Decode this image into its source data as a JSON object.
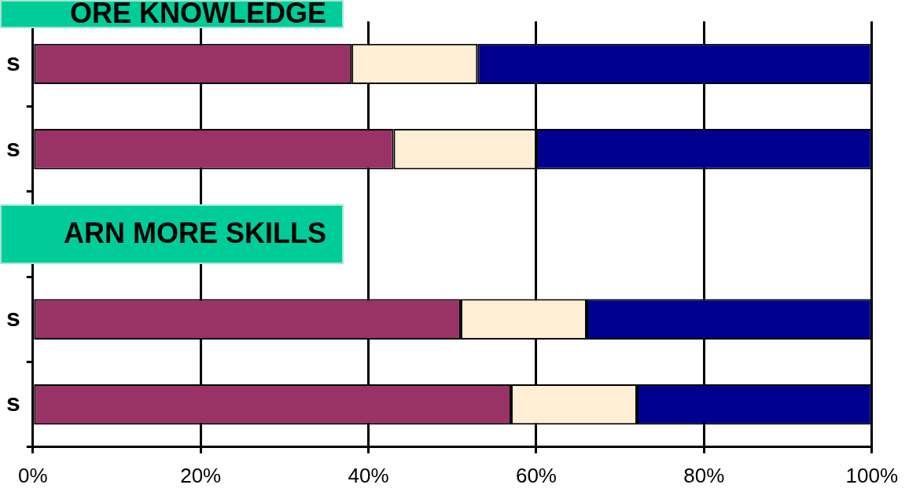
{
  "chart_data": {
    "type": "bar",
    "orientation": "horizontal",
    "stacked": true,
    "categories": [
      "s",
      "s",
      null,
      "s",
      "s"
    ],
    "series": [
      {
        "color": "#993366",
        "values": [
          38,
          43,
          null,
          51,
          57
        ]
      },
      {
        "color": "#fdeed4",
        "values": [
          15,
          17,
          null,
          15,
          15
        ]
      },
      {
        "color": "#000090",
        "values": [
          47,
          40,
          null,
          34,
          28
        ]
      }
    ],
    "xlim": [
      0,
      100
    ],
    "xticks": [
      {
        "value": 0,
        "label": "0%"
      },
      {
        "value": 20,
        "label": "20%"
      },
      {
        "value": 40,
        "label": "40%"
      },
      {
        "value": 60,
        "label": "60%"
      },
      {
        "value": 80,
        "label": "80%"
      },
      {
        "value": 100,
        "label": "100%"
      }
    ],
    "grid": "x",
    "legend": false,
    "annotations": [
      "ORE KNOWLEDGE",
      "ARN MORE SKILLS"
    ]
  }
}
